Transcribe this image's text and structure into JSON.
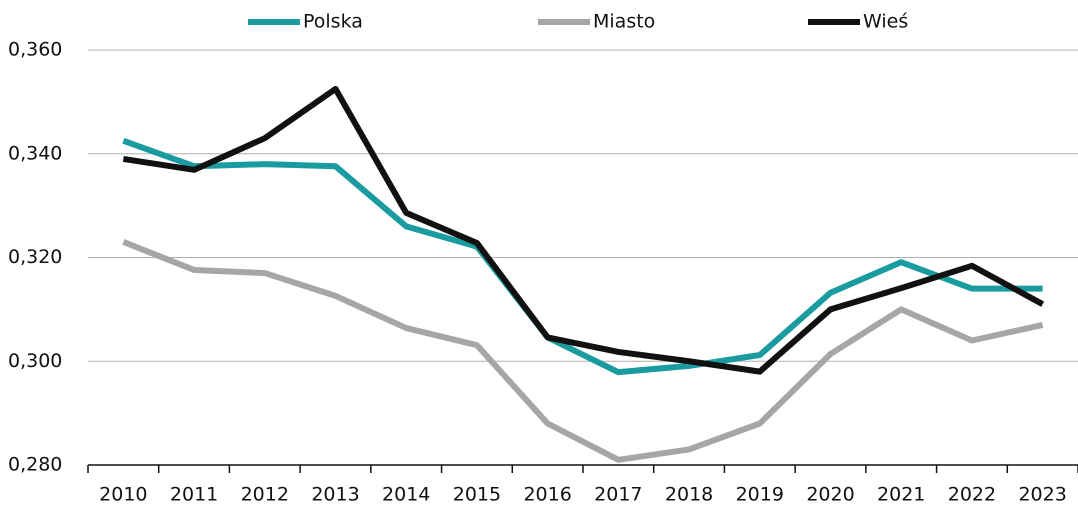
{
  "chart_data": {
    "type": "line",
    "categories": [
      "2010",
      "2011",
      "2012",
      "2013",
      "2014",
      "2015",
      "2016",
      "2017",
      "2018",
      "2019",
      "2020",
      "2021",
      "2022",
      "2023"
    ],
    "series": [
      {
        "name": "Polska",
        "color": "#1a9ba0",
        "values": [
          0.3425,
          0.3376,
          0.338,
          0.3376,
          0.326,
          0.3221,
          0.3046,
          0.2979,
          0.2991,
          0.3012,
          0.3132,
          0.3191,
          0.314,
          0.314
        ]
      },
      {
        "name": "Miasto",
        "color": "#a6a6a6",
        "values": [
          0.323,
          0.3176,
          0.317,
          0.3126,
          0.3064,
          0.3031,
          0.288,
          0.281,
          0.283,
          0.288,
          0.3014,
          0.31,
          0.304,
          0.307
        ]
      },
      {
        "name": "Wieś",
        "color": "#111111",
        "values": [
          0.339,
          0.3369,
          0.343,
          0.3525,
          0.3286,
          0.3228,
          0.3046,
          0.3018,
          0.3,
          0.298,
          0.31,
          0.3141,
          0.3184,
          0.311
        ]
      }
    ],
    "ylim": [
      0.28,
      0.36
    ],
    "yticks": [
      {
        "value": 0.28,
        "label": "0,280"
      },
      {
        "value": 0.3,
        "label": "0,300"
      },
      {
        "value": 0.32,
        "label": "0,320"
      },
      {
        "value": 0.34,
        "label": "0,340"
      },
      {
        "value": 0.36,
        "label": "0,360"
      }
    ],
    "grid": true,
    "legend": "top"
  }
}
